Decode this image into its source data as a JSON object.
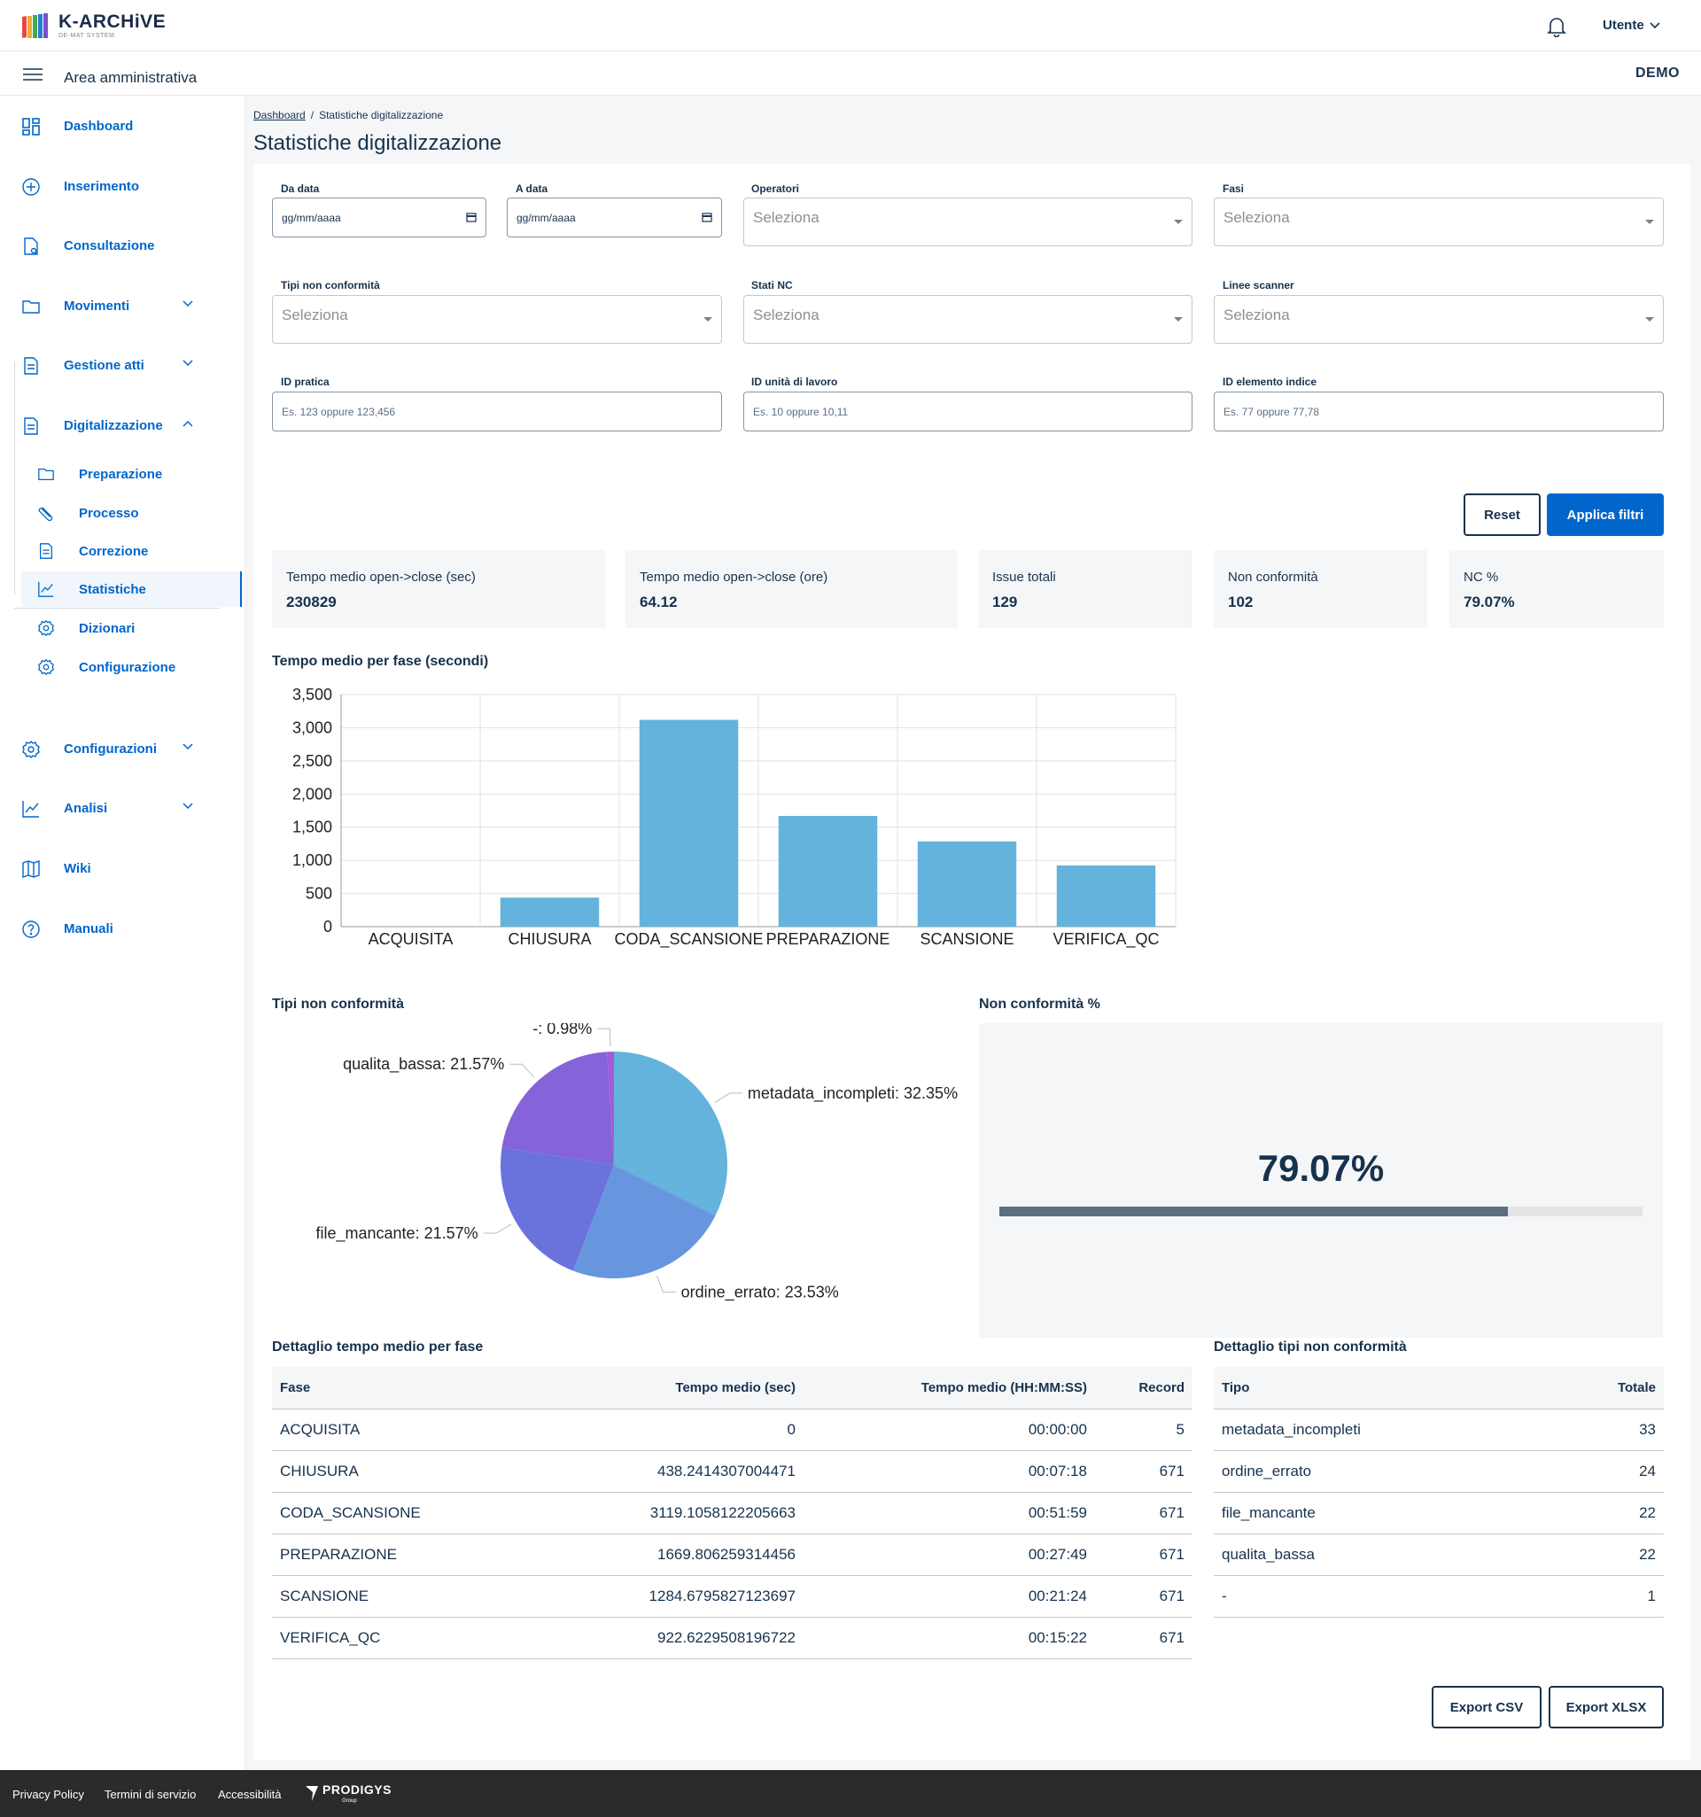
{
  "header": {
    "logo_name": "K-ARCHiVE",
    "logo_sub": "DE-MAT SYSTEM",
    "user_label": "Utente",
    "area_title": "Area amministrativa",
    "env_badge": "DEMO"
  },
  "sidebar": {
    "items": [
      {
        "label": "Dashboard",
        "icon": "dashboard-icon"
      },
      {
        "label": "Inserimento",
        "icon": "plus-circle-icon"
      },
      {
        "label": "Consultazione",
        "icon": "document-search-icon"
      },
      {
        "label": "Movimenti",
        "icon": "folder-icon"
      },
      {
        "label": "Gestione atti",
        "icon": "file-icon"
      },
      {
        "label": "Digitalizzazione",
        "icon": "file-icon"
      },
      {
        "label": "Configurazioni",
        "icon": "gear-icon"
      },
      {
        "label": "Analisi",
        "icon": "chart-line-icon"
      },
      {
        "label": "Wiki",
        "icon": "book-icon"
      },
      {
        "label": "Manuali",
        "icon": "help-circle-icon"
      }
    ],
    "sub_items": [
      {
        "label": "Preparazione",
        "icon": "folder-icon"
      },
      {
        "label": "Processo",
        "icon": "clip-icon"
      },
      {
        "label": "Correzione",
        "icon": "file-icon"
      },
      {
        "label": "Statistiche",
        "icon": "chart-line-icon"
      },
      {
        "label": "Dizionari",
        "icon": "gear-icon"
      },
      {
        "label": "Configurazione",
        "icon": "gear-icon"
      }
    ]
  },
  "breadcrumb": {
    "home": "Dashboard",
    "separator": "/",
    "current": "Statistiche digitalizzazione"
  },
  "page_title": "Statistiche digitalizzazione",
  "filters": {
    "da_data": {
      "label": "Da data",
      "value": "gg/mm/aaaa"
    },
    "a_data": {
      "label": "A data",
      "value": "gg/mm/aaaa"
    },
    "operatori": {
      "label": "Operatori",
      "placeholder": "Seleziona"
    },
    "fasi": {
      "label": "Fasi",
      "placeholder": "Seleziona"
    },
    "tipi_nc": {
      "label": "Tipi non conformità",
      "placeholder": "Seleziona"
    },
    "stati_nc": {
      "label": "Stati NC",
      "placeholder": "Seleziona"
    },
    "linee_scanner": {
      "label": "Linee scanner",
      "placeholder": "Seleziona"
    },
    "id_pratica": {
      "label": "ID pratica",
      "placeholder": "Es. 123 oppure 123,456"
    },
    "id_unita": {
      "label": "ID unità di lavoro",
      "placeholder": "Es. 10 oppure 10,11"
    },
    "id_elemento": {
      "label": "ID elemento indice",
      "placeholder": "Es. 77 oppure 77,78"
    },
    "reset_label": "Reset",
    "apply_label": "Applica filtri"
  },
  "kpis": [
    {
      "label": "Tempo medio open->close (sec)",
      "value": "230829"
    },
    {
      "label": "Tempo medio open->close (ore)",
      "value": "64.12"
    },
    {
      "label": "Issue totali",
      "value": "129"
    },
    {
      "label": "Non conformità",
      "value": "102"
    },
    {
      "label": "NC %",
      "value": "79.07%"
    }
  ],
  "sections": {
    "bar_title": "Tempo medio per fase (secondi)",
    "pie_title": "Tipi non conformità",
    "nc_title": "Non conformità %",
    "table1_title": "Dettaglio tempo medio per fase",
    "table2_title": "Dettaglio tipi non conformità"
  },
  "chart_data": [
    {
      "type": "bar",
      "categories": [
        "ACQUISITA",
        "CHIUSURA",
        "CODA_SCANSIONE",
        "PREPARAZIONE",
        "SCANSIONE",
        "VERIFICA_QC"
      ],
      "values": [
        0,
        438.24,
        3119.11,
        1669.81,
        1284.68,
        922.62
      ],
      "yticks": [
        "0",
        "500",
        "1,000",
        "1,500",
        "2,000",
        "2,500",
        "3,000",
        "3,500"
      ],
      "ylim": [
        0,
        3500
      ],
      "grid": true,
      "color": "#63b3dc"
    },
    {
      "type": "pie",
      "slices": [
        {
          "label": "metadata_incompleti: 32.35%",
          "value": 32.35,
          "color": "#63b3dc"
        },
        {
          "label": "ordine_errato: 23.53%",
          "value": 23.53,
          "color": "#6896de"
        },
        {
          "label": "file_mancante: 21.57%",
          "value": 21.57,
          "color": "#6a72dc"
        },
        {
          "label": "qualita_bassa: 21.57%",
          "value": 21.57,
          "color": "#8464d8"
        },
        {
          "label": "-: 0.98%",
          "value": 0.98,
          "color": "#a35bd6"
        }
      ]
    }
  ],
  "nc_percent": {
    "value_label": "79.07%",
    "fraction": 0.7907
  },
  "table_fasi": {
    "headers": [
      "Fase",
      "Tempo medio (sec)",
      "Tempo medio (HH:MM:SS)",
      "Record"
    ],
    "rows": [
      [
        "ACQUISITA",
        "0",
        "00:00:00",
        "5"
      ],
      [
        "CHIUSURA",
        "438.2414307004471",
        "00:07:18",
        "671"
      ],
      [
        "CODA_SCANSIONE",
        "3119.1058122205663",
        "00:51:59",
        "671"
      ],
      [
        "PREPARAZIONE",
        "1669.806259314456",
        "00:27:49",
        "671"
      ],
      [
        "SCANSIONE",
        "1284.6795827123697",
        "00:21:24",
        "671"
      ],
      [
        "VERIFICA_QC",
        "922.6229508196722",
        "00:15:22",
        "671"
      ]
    ]
  },
  "table_nc": {
    "headers": [
      "Tipo",
      "Totale"
    ],
    "rows": [
      [
        "metadata_incompleti",
        "33"
      ],
      [
        "ordine_errato",
        "24"
      ],
      [
        "file_mancante",
        "22"
      ],
      [
        "qualita_bassa",
        "22"
      ],
      [
        "-",
        "1"
      ]
    ]
  },
  "exports": {
    "csv_label": "Export CSV",
    "xlsx_label": "Export XLSX"
  },
  "footer": {
    "links": [
      "Privacy Policy",
      "Termini di servizio",
      "Accessibilità"
    ],
    "brand": "PRODIGYS",
    "brand_sub": "Group"
  }
}
